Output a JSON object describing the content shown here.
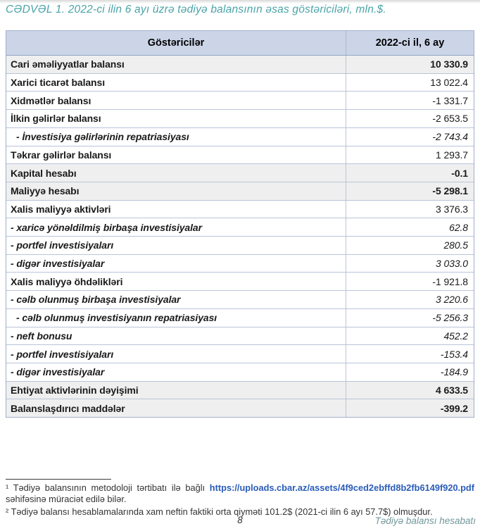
{
  "title": "CƏDVƏL 1. 2022-ci ilin 6 ayı üzrə tədiyə balansının əsas göstəriciləri, mln.$.",
  "table": {
    "header": {
      "col1": "Göstəricilər",
      "col2": "2022-ci il, 6 ay"
    },
    "rows": [
      {
        "label": "Cari əməliyyatlar balansı",
        "value": "10 330.9"
      },
      {
        "label": "Xarici ticarət balansı",
        "value": "13 022.4"
      },
      {
        "label": "Xidmətlər balansı",
        "value": "-1 331.7"
      },
      {
        "label": "İlkin gəlirlər balansı",
        "value": "-2 653.5"
      },
      {
        "label": "- İnvestisiya gəlirlərinin repatriasiyası",
        "value": "-2 743.4"
      },
      {
        "label": "Təkrar gəlirlər balansı",
        "value": "1 293.7"
      },
      {
        "label": "Kapital hesabı",
        "value": "-0.1"
      },
      {
        "label": "Maliyyə hesabı",
        "value": "-5 298.1"
      },
      {
        "label": "Xalis maliyyə aktivləri",
        "value": "3 376.3"
      },
      {
        "label": "- xaricə yönəldilmiş birbaşa investisiyalar",
        "value": "62.8"
      },
      {
        "label": "- portfel investisiyaları",
        "value": "280.5"
      },
      {
        "label": "- digər investisiyalar",
        "value": "3 033.0"
      },
      {
        "label": "Xalis maliyyə öhdəlikləri",
        "value": "-1 921.8"
      },
      {
        "label": "- cəlb olunmuş birbaşa investisiyalar",
        "value": "3 220.6"
      },
      {
        "label": "- cəlb olunmuş investisiyanın repatriasiyası",
        "value": "-5 256.3"
      },
      {
        "label": "- neft bonusu",
        "value": "452.2"
      },
      {
        "label": "- portfel investisiyaları",
        "value": "-153.4"
      },
      {
        "label": "- digər investisiyalar",
        "value": "-184.9"
      },
      {
        "label": "Ehtiyat aktivlərinin dəyişimi",
        "value": "4 633.5"
      },
      {
        "label": "Balanslaşdırıcı maddələr",
        "value": "-399.2"
      }
    ]
  },
  "footnotes": {
    "note1_prefix": "¹ Tədiyə balansının metodoloji tərtibatı ilə bağlı",
    "note1_link": "https://uploads.cbar.az/assets/4f9ced2ebffd8b2fb6149f920.pdf",
    "note1_suffix": "səhifəsinə müraciət edilə bilər.",
    "note2": "² Tədiyə balansı hesablamalarında xam neftin faktiki orta qiyməti 101.2$ (2021-ci ilin 6 ayı 57.7$) olmuşdur."
  },
  "footer": {
    "page_number": "8",
    "right_text": "Tədiyə balansı hesabatı"
  },
  "colors": {
    "title_teal": "#4aa3a8",
    "header_bg": "#ccd5e8",
    "shade_row_bg": "#efefef",
    "table_border": "#9fafc9",
    "link_blue": "#2a5cb8",
    "footer_teal": "#71989a"
  }
}
